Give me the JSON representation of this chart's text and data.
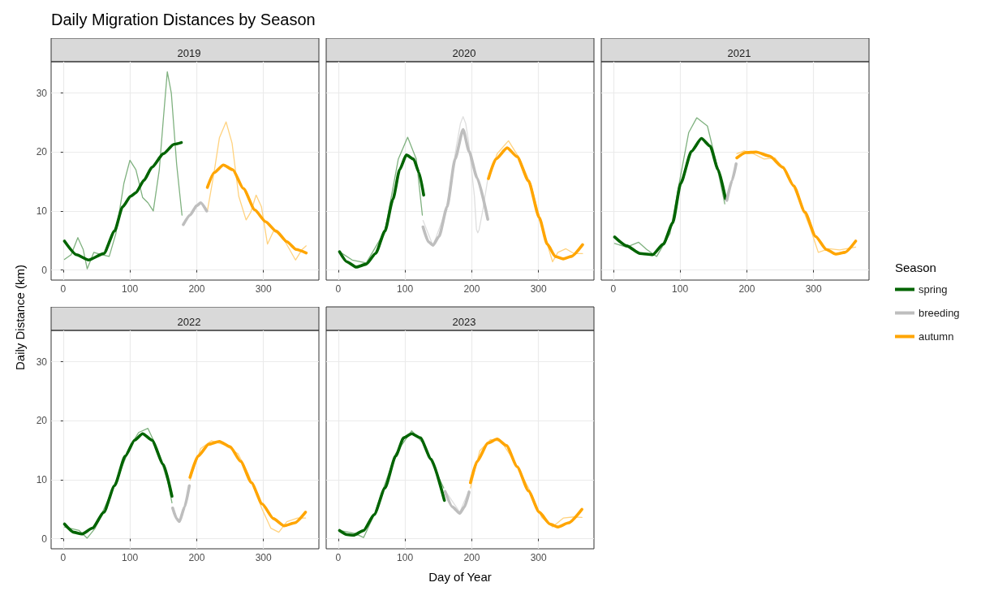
{
  "chart_data": [
    {
      "type": "line",
      "title": "Daily Migration Distances by Season",
      "subtitle": "2019",
      "ylabel": "Daily Distance (km)",
      "xlim": [
        -18,
        383
      ],
      "ylim": [
        -1.7,
        35.3
      ],
      "xticks": [
        0,
        100,
        200,
        300
      ],
      "yticks": [
        0,
        10,
        20,
        30
      ],
      "grid": true,
      "marker": "none",
      "series": [
        {
          "color": "#7fb17f",
          "x": [
            2,
            12,
            22,
            30,
            36,
            46,
            57,
            69,
            79,
            91,
            100,
            109,
            119,
            127,
            135,
            144,
            150,
            156,
            162,
            170,
            178
          ],
          "values": [
            1.8,
            2.6,
            5.5,
            3.5,
            0.2,
            3,
            2.6,
            2.3,
            6.2,
            14.7,
            18.6,
            17,
            12.3,
            11.4,
            10,
            17,
            25.5,
            33.6,
            30,
            17.9,
            9.3
          ]
        },
        {
          "color": "#006400",
          "x": [
            2,
            20,
            38,
            61,
            77,
            89,
            101,
            109,
            121,
            133,
            150,
            166,
            177
          ],
          "values": [
            4.9,
            2.6,
            1.7,
            2.8,
            6.6,
            10.7,
            12.5,
            13.1,
            15.2,
            17.4,
            19.7,
            21.3,
            21.6
          ]
        },
        {
          "color": "#bebebe",
          "x": [
            180,
            190,
            200,
            206,
            215
          ],
          "values": [
            7.7,
            9.3,
            10.9,
            11.4,
            10
          ]
        },
        {
          "color": "#ffd27f",
          "x": [
            216,
            226,
            234,
            244,
            253,
            263,
            274,
            281,
            289,
            297,
            306,
            315,
            327,
            337,
            348,
            358,
            364
          ],
          "values": [
            10,
            16.5,
            22.4,
            25.1,
            21.5,
            12.5,
            8.5,
            9.8,
            12.7,
            10.7,
            4.4,
            6.6,
            5.9,
            3.9,
            1.7,
            3.5,
            4.1
          ]
        },
        {
          "color": "#ffa500",
          "x": [
            216,
            226,
            240,
            254,
            270,
            287,
            303,
            319,
            335,
            349,
            364
          ],
          "values": [
            14,
            16.5,
            17.8,
            17,
            13.8,
            10.2,
            8.2,
            6.6,
            4.8,
            3.5,
            2.9
          ]
        }
      ]
    },
    {
      "type": "line",
      "title": "2020",
      "xlim": [
        -18,
        383
      ],
      "ylim": [
        -1.7,
        35.3
      ],
      "xticks": [
        0,
        100,
        200,
        300
      ],
      "yticks": [
        0,
        10,
        20,
        30
      ],
      "grid": true,
      "marker": "none",
      "tick_labels": "x",
      "series": [
        {
          "color": "#7fb17f",
          "x": [
            2,
            21,
            42,
            70,
            90,
            104,
            117,
            126
          ],
          "values": [
            3.1,
            1.7,
            1.2,
            6.6,
            18.8,
            22.5,
            18.8,
            9.3
          ]
        },
        {
          "color": "#006400",
          "x": [
            2,
            13,
            27,
            42,
            56,
            70,
            82,
            92,
            102,
            113,
            121,
            128
          ],
          "values": [
            3.1,
            1.4,
            0.5,
            1,
            2.8,
            6.6,
            12,
            17,
            19.5,
            18.8,
            16.5,
            12.7
          ]
        },
        {
          "color": "#dedede",
          "x": [
            127,
            142,
            163,
            177,
            183,
            187,
            191,
            195,
            204,
            207,
            209,
            211,
            216,
            224
          ],
          "values": [
            8.4,
            4.1,
            10.7,
            21,
            24.8,
            26,
            24.8,
            21.9,
            12.5,
            6.9,
            6.3,
            6.8,
            9.8,
            15.4
          ]
        },
        {
          "color": "#bebebe",
          "x": [
            127,
            135,
            142,
            151,
            163,
            175,
            187,
            196,
            208,
            224
          ],
          "values": [
            7.3,
            4.8,
            4.2,
            5.7,
            10.7,
            18.8,
            23.8,
            20.1,
            15.6,
            8.6
          ]
        },
        {
          "color": "#ffd27f",
          "x": [
            225,
            238,
            255,
            272,
            289,
            305,
            321,
            329,
            341,
            353,
            366
          ],
          "values": [
            15.5,
            19.7,
            21.9,
            18.8,
            14.3,
            7.5,
            1.4,
            3,
            3.6,
            2.8,
            2.8
          ]
        },
        {
          "color": "#ffa500",
          "x": [
            225,
            236,
            253,
            268,
            285,
            301,
            313,
            325,
            337,
            349,
            366
          ],
          "values": [
            15.5,
            18.8,
            20.7,
            19.2,
            15.1,
            8.9,
            4.4,
            2.3,
            1.9,
            2.3,
            4.3
          ]
        }
      ]
    },
    {
      "type": "line",
      "title": "2021",
      "xlim": [
        -18,
        383
      ],
      "ylim": [
        -1.7,
        35.3
      ],
      "xticks": [
        0,
        100,
        200,
        300
      ],
      "yticks": [
        0,
        10,
        20,
        30
      ],
      "grid": true,
      "marker": "none",
      "tick_labels": "x",
      "series": [
        {
          "color": "#7fb17f",
          "x": [
            2,
            20,
            38,
            50,
            65,
            85,
            101,
            113,
            125,
            141,
            153,
            167
          ],
          "values": [
            4.5,
            3.9,
            4.7,
            3.5,
            2.3,
            6.2,
            16.1,
            23.3,
            25.8,
            24.4,
            18.8,
            11.2
          ]
        },
        {
          "color": "#006400",
          "x": [
            2,
            20,
            40,
            59,
            75,
            89,
            101,
            117,
            132,
            145,
            157,
            168
          ],
          "values": [
            5.6,
            4.1,
            2.8,
            2.6,
            4.4,
            8,
            14.7,
            20.1,
            22.3,
            21,
            17,
            12.1
          ]
        },
        {
          "color": "#bebebe",
          "x": [
            170,
            178,
            184
          ],
          "values": [
            11.8,
            15.2,
            18
          ]
        },
        {
          "color": "#ffd27f",
          "x": [
            185,
            196,
            210,
            226,
            242,
            262,
            278,
            295,
            307,
            323,
            339,
            363
          ],
          "values": [
            19.7,
            20.2,
            19.7,
            18.8,
            19,
            16.1,
            12,
            7.1,
            3,
            3.6,
            3.4,
            3.9
          ]
        },
        {
          "color": "#ffa500",
          "x": [
            185,
            198,
            214,
            234,
            254,
            270,
            287,
            303,
            319,
            333,
            347,
            363
          ],
          "values": [
            19,
            19.9,
            20,
            19.3,
            17.4,
            14.3,
            9.8,
            5.7,
            3.5,
            2.7,
            3,
            4.9
          ]
        }
      ]
    },
    {
      "type": "line",
      "title": "2022",
      "xlim": [
        -18,
        383
      ],
      "ylim": [
        -1.7,
        35.3
      ],
      "xticks": [
        0,
        100,
        200,
        300
      ],
      "yticks": [
        0,
        10,
        20,
        30
      ],
      "grid": true,
      "marker": "none",
      "series": [
        {
          "color": "#7fb17f",
          "x": [
            2,
            24,
            36,
            48,
            77,
            101,
            113,
            127,
            141,
            157,
            163
          ],
          "values": [
            2,
            1.4,
            0.1,
            1.8,
            9,
            15.8,
            18,
            18.7,
            15.3,
            9.5,
            6.1
          ]
        },
        {
          "color": "#006400",
          "x": [
            2,
            16,
            28,
            44,
            61,
            77,
            93,
            107,
            119,
            133,
            150,
            163
          ],
          "values": [
            2.5,
            1.1,
            0.8,
            1.8,
            4.5,
            9,
            14,
            16.7,
            17.8,
            16.7,
            12.6,
            7.2
          ]
        },
        {
          "color": "#bebebe",
          "x": [
            164,
            170,
            174,
            182,
            189
          ],
          "values": [
            5.2,
            3.4,
            2.9,
            5.4,
            9
          ]
        },
        {
          "color": "#ffd27f",
          "x": [
            190,
            206,
            222,
            242,
            262,
            278,
            298,
            311,
            323,
            335,
            351,
            363
          ],
          "values": [
            9.9,
            15.3,
            16.6,
            15.9,
            14.4,
            10.8,
            5,
            1.8,
            1.1,
            2.9,
            3.5,
            3.5
          ]
        },
        {
          "color": "#ffa500",
          "x": [
            190,
            202,
            218,
            234,
            250,
            266,
            282,
            298,
            315,
            331,
            347,
            363
          ],
          "values": [
            10.4,
            14,
            16,
            16.5,
            15.6,
            13.1,
            9.5,
            5.9,
            3.4,
            2.2,
            2.7,
            4.5
          ]
        }
      ]
    },
    {
      "type": "line",
      "title": "2023",
      "xlabel": "Day of Year",
      "legend_title": "Season",
      "legend": "right",
      "xlim": [
        -18,
        383
      ],
      "ylim": [
        -1.7,
        35.3
      ],
      "xticks": [
        0,
        100,
        200,
        300
      ],
      "yticks": [
        0,
        10,
        20,
        30
      ],
      "grid": true,
      "marker": "none",
      "tick_labels": "x",
      "series": [
        {
          "color": "#7fb17f",
          "x": [
            2,
            25,
            38,
            54,
            86,
            110,
            127,
            143,
            158
          ],
          "values": [
            1.4,
            0.9,
            0.2,
            4.1,
            14.4,
            18.3,
            16.2,
            12.2,
            8.6
          ]
        },
        {
          "name": "spring",
          "color": "#006400",
          "x": [
            2,
            13,
            23,
            38,
            54,
            70,
            86,
            98,
            110,
            123,
            139,
            159
          ],
          "values": [
            1.4,
            0.7,
            0.6,
            1.4,
            4.1,
            8.6,
            14,
            17.1,
            17.8,
            17.1,
            13.5,
            6.5
          ]
        },
        {
          "color": "#dedede",
          "x": [
            160,
            182,
            196
          ],
          "values": [
            8.2,
            4.5,
            8.2
          ]
        },
        {
          "name": "breeding",
          "color": "#bebebe",
          "x": [
            160,
            171,
            182,
            189,
            196
          ],
          "values": [
            8,
            5.4,
            4.3,
            5.4,
            7.9
          ]
        },
        {
          "color": "#ffd27f",
          "x": [
            198,
            212,
            228,
            244,
            264,
            285,
            305,
            321,
            337,
            353,
            365
          ],
          "values": [
            8.6,
            14.9,
            16.8,
            16.5,
            13.1,
            8.6,
            3.6,
            2,
            3.5,
            3.7,
            3.6
          ]
        },
        {
          "name": "autumn",
          "color": "#ffa500",
          "x": [
            198,
            208,
            224,
            238,
            252,
            268,
            285,
            301,
            317,
            329,
            345,
            365
          ],
          "values": [
            9.5,
            13.1,
            16.2,
            16.9,
            15.8,
            12.2,
            8.1,
            4.5,
            2.5,
            2,
            2.7,
            5
          ]
        }
      ]
    }
  ]
}
